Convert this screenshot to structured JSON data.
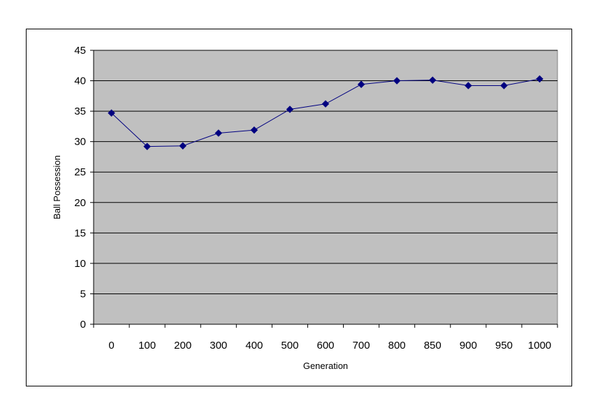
{
  "chart_data": {
    "type": "line",
    "xlabel": "Generation",
    "ylabel": "Ball Possession",
    "ylim": [
      0,
      45
    ],
    "yticks": [
      0,
      5,
      10,
      15,
      20,
      25,
      30,
      35,
      40,
      45
    ],
    "categories": [
      "0",
      "100",
      "200",
      "300",
      "400",
      "500",
      "600",
      "700",
      "800",
      "850",
      "900",
      "950",
      "1000"
    ],
    "series": [
      {
        "values": [
          34.7,
          29.2,
          29.3,
          31.4,
          31.9,
          35.3,
          36.2,
          39.4,
          40.0,
          40.1,
          39.2,
          39.2,
          40.3
        ]
      }
    ],
    "grid": "horizontal",
    "legend": "none",
    "plot_background": "#c0c0c0",
    "line_color": "#000080",
    "marker": "diamond"
  }
}
